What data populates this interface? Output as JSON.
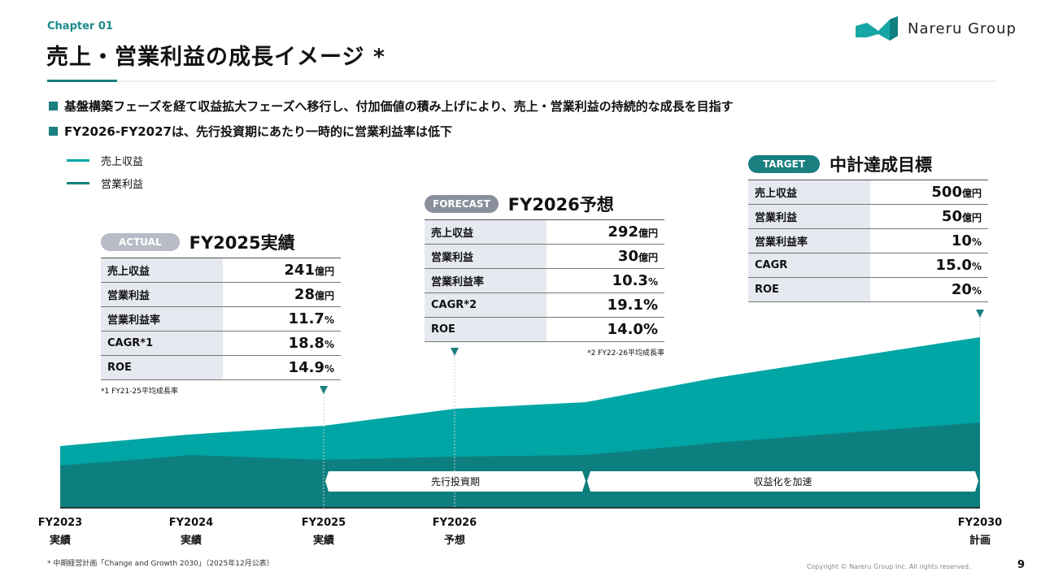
{
  "header": {
    "chapter": "Chapter 01",
    "title": "売上・営業利益の成長イメージ *",
    "logo_text": "Nareru Group"
  },
  "bullets": [
    "基盤構築フェーズを経て収益拡大フェーズへ移行し、付加価値の積み上げにより、売上・営業利益の持続的な成長を目指す",
    "FY2026-FY2027は、先行投資期にあたり一時的に営業利益率は低下"
  ],
  "legend": [
    {
      "label": "売上収益",
      "color": "#00a6a6"
    },
    {
      "label": "営業利益",
      "color": "#0e7f7f"
    }
  ],
  "panels": {
    "actual": {
      "badge": "ACTUAL",
      "title": "FY2025実績",
      "rows": [
        [
          "売上収益",
          "241",
          "億円"
        ],
        [
          "営業利益",
          "28",
          "億円"
        ],
        [
          "営業利益率",
          "11.7",
          "%"
        ],
        [
          "CAGR*1",
          "18.8",
          "%"
        ],
        [
          "ROE",
          "14.9",
          "%"
        ]
      ],
      "note": "*1 FY21-25平均成長率"
    },
    "forecast": {
      "badge": "FORECAST",
      "title": "FY2026予想",
      "rows": [
        [
          "売上収益",
          "292",
          "億円"
        ],
        [
          "営業利益",
          "30",
          "億円"
        ],
        [
          "営業利益率",
          "10.3",
          "%"
        ],
        [
          "CAGR*2",
          "19.1%",
          ""
        ],
        [
          "ROE",
          "14.0%",
          ""
        ]
      ],
      "note": "*2 FY22-26平均成長率"
    },
    "target": {
      "badge": "TARGET",
      "title": "中計達成目標",
      "rows": [
        [
          "売上収益",
          "500",
          "億円"
        ],
        [
          "営業利益",
          "50",
          "億円"
        ],
        [
          "営業利益率",
          "10",
          "%"
        ],
        [
          "CAGR",
          "15.0",
          "%"
        ],
        [
          "ROE",
          "20",
          "%"
        ]
      ]
    }
  },
  "phases": [
    "先行投資期",
    "収益化を加速"
  ],
  "xaxis": [
    {
      "year": "FY2023",
      "sub": "実績"
    },
    {
      "year": "FY2024",
      "sub": "実績"
    },
    {
      "year": "FY2025",
      "sub": "実績"
    },
    {
      "year": "FY2026",
      "sub": "予想"
    },
    {
      "year": "FY2030",
      "sub": "計画"
    }
  ],
  "footer": {
    "note": "* 中期経営計画「Change and Growth 2030」（2025年12月公表）",
    "copyright": "Copyright © Nareru Group Inc. All rights reserved.",
    "page": "9"
  },
  "colors": {
    "accent": "#1a7f7f",
    "sales": "#00a6a6",
    "profit": "#0e7f7f",
    "badge_gray": "#b8bcc6",
    "badge_forecast": "#8a8f9c"
  }
}
